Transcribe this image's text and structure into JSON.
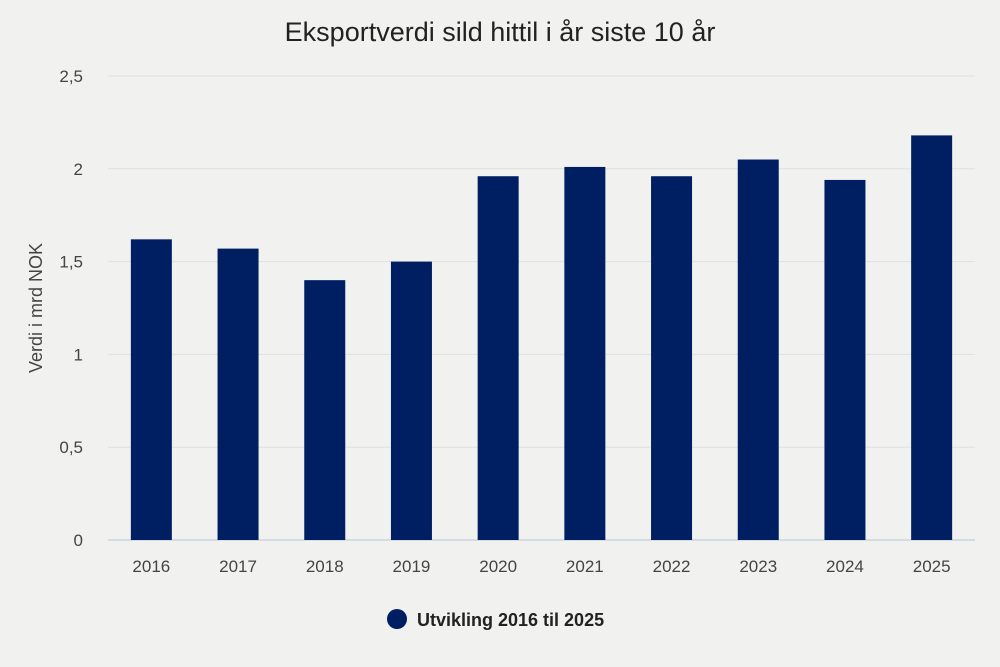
{
  "chart_data": {
    "type": "bar",
    "title": "Eksportverdi sild hittil i år siste 10 år",
    "xlabel": "",
    "ylabel": "Verdi i mrd NOK",
    "categories": [
      "2016",
      "2017",
      "2018",
      "2019",
      "2020",
      "2021",
      "2022",
      "2023",
      "2024",
      "2025"
    ],
    "series": [
      {
        "name": "Utvikling 2016 til 2025",
        "values": [
          1.62,
          1.57,
          1.4,
          1.5,
          1.96,
          2.01,
          1.96,
          2.05,
          1.94,
          2.18
        ],
        "color": "#001e62"
      }
    ],
    "ylim": [
      0,
      2.5
    ],
    "yticks": [
      "0",
      "0,5",
      "1",
      "1,5",
      "2",
      "2,5"
    ],
    "ytick_values": [
      0,
      0.5,
      1,
      1.5,
      2,
      2.5
    ],
    "grid": true,
    "legend_position": "bottom-center"
  }
}
